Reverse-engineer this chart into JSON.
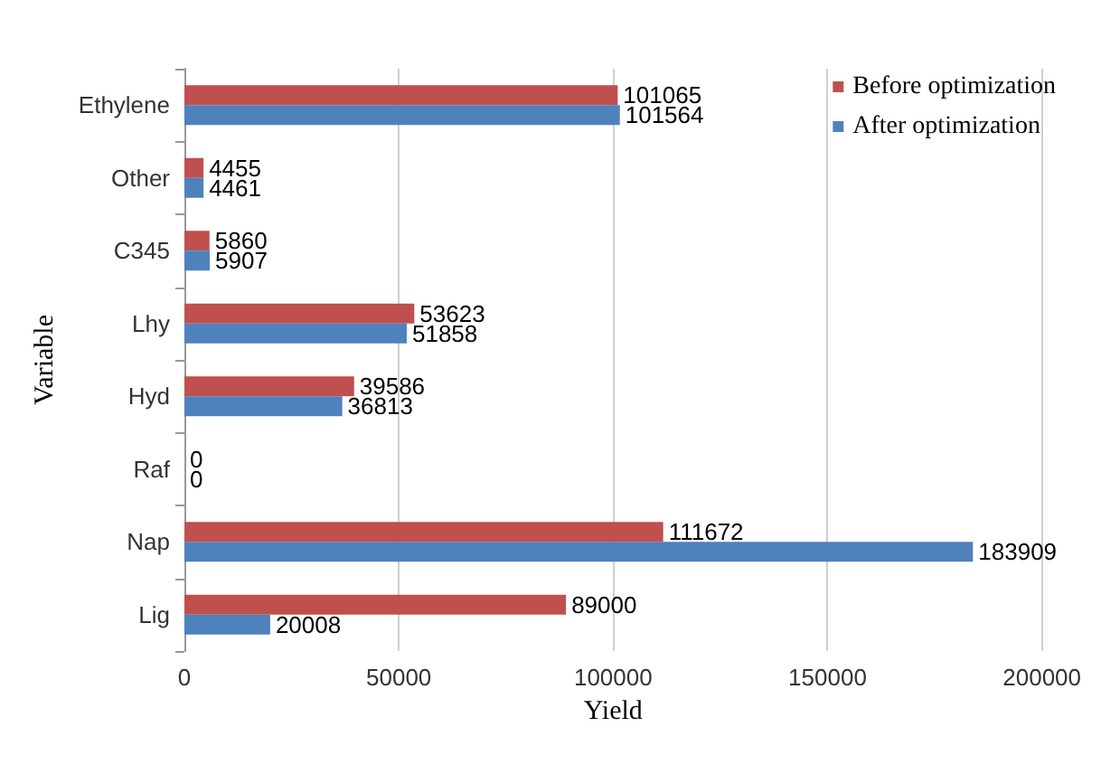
{
  "chart_data": {
    "type": "bar",
    "orientation": "horizontal",
    "xlabel": "Yield",
    "ylabel": "Variable",
    "categories": [
      "Ethylene",
      "Other",
      "C345",
      "Lhy",
      "Hyd",
      "Raf",
      "Nap",
      "Lig"
    ],
    "series": [
      {
        "name": "Before optimization",
        "color": "#c0504d",
        "values": [
          101065,
          4455,
          5860,
          53623,
          39586,
          0,
          111672,
          89000
        ]
      },
      {
        "name": "After optimization",
        "color": "#4f81bd",
        "values": [
          101564,
          4461,
          5907,
          51858,
          36813,
          0,
          183909,
          20008
        ]
      }
    ],
    "xlim": [
      0,
      200000
    ],
    "xticks": [
      0,
      50000,
      100000,
      150000,
      200000
    ],
    "grid": "x",
    "legend": "top right",
    "data_labels": true
  }
}
